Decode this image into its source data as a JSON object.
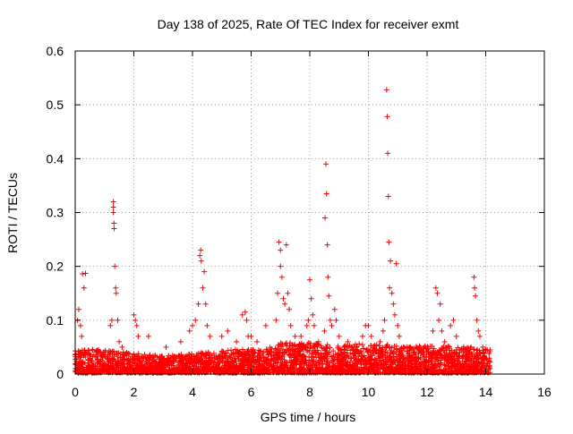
{
  "chart_data": {
    "type": "scatter",
    "title": "Day 138 of 2025, Rate Of TEC Index for receiver exmt",
    "xlabel": "GPS time / hours",
    "ylabel": "ROTI / TECUs",
    "xlim": [
      0,
      16
    ],
    "ylim": [
      0,
      0.6
    ],
    "xticks": [
      0,
      2,
      4,
      6,
      8,
      10,
      12,
      14,
      16
    ],
    "xtick_labels": [
      "0",
      "2",
      "4",
      "6",
      "8",
      "10",
      "12",
      "14",
      "16"
    ],
    "yticks": [
      0,
      0.1,
      0.2,
      0.3,
      0.4,
      0.5,
      0.6
    ],
    "ytick_labels": [
      "0",
      "0.1",
      "0.2",
      "0.3",
      "0.4",
      "0.5",
      "0.6"
    ],
    "grid": true,
    "legend": "none",
    "marker": "plus",
    "color": "#ff0000",
    "x_span": [
      0,
      14.15
    ],
    "baseline_envelope": [
      [
        0.0,
        0.035
      ],
      [
        1.0,
        0.035
      ],
      [
        2.0,
        0.03
      ],
      [
        3.0,
        0.025
      ],
      [
        4.0,
        0.03
      ],
      [
        5.0,
        0.035
      ],
      [
        6.0,
        0.035
      ],
      [
        7.0,
        0.045
      ],
      [
        8.0,
        0.045
      ],
      [
        9.0,
        0.04
      ],
      [
        10.0,
        0.045
      ],
      [
        11.0,
        0.04
      ],
      [
        12.0,
        0.04
      ],
      [
        13.0,
        0.04
      ],
      [
        14.15,
        0.035
      ]
    ],
    "points": [
      [
        0.05,
        0.02
      ],
      [
        0.08,
        0.1
      ],
      [
        0.12,
        0.12
      ],
      [
        0.18,
        0.09
      ],
      [
        0.22,
        0.07
      ],
      [
        0.25,
        0.186
      ],
      [
        0.3,
        0.16
      ],
      [
        0.35,
        0.187
      ],
      [
        1.2,
        0.09
      ],
      [
        1.25,
        0.1
      ],
      [
        1.3,
        0.32
      ],
      [
        1.3,
        0.31
      ],
      [
        1.3,
        0.3
      ],
      [
        1.32,
        0.28
      ],
      [
        1.33,
        0.27
      ],
      [
        1.35,
        0.2
      ],
      [
        1.38,
        0.16
      ],
      [
        1.4,
        0.15
      ],
      [
        1.45,
        0.1
      ],
      [
        1.5,
        0.06
      ],
      [
        1.6,
        0.05
      ],
      [
        2.0,
        0.11
      ],
      [
        2.05,
        0.1
      ],
      [
        2.1,
        0.09
      ],
      [
        2.15,
        0.07
      ],
      [
        2.5,
        0.07
      ],
      [
        3.1,
        0.05
      ],
      [
        3.6,
        0.06
      ],
      [
        3.9,
        0.08
      ],
      [
        4.0,
        0.09
      ],
      [
        4.1,
        0.1
      ],
      [
        4.2,
        0.13
      ],
      [
        4.25,
        0.22
      ],
      [
        4.28,
        0.23
      ],
      [
        4.3,
        0.21
      ],
      [
        4.35,
        0.16
      ],
      [
        4.4,
        0.19
      ],
      [
        4.45,
        0.13
      ],
      [
        4.5,
        0.09
      ],
      [
        4.6,
        0.07
      ],
      [
        5.0,
        0.07
      ],
      [
        5.2,
        0.08
      ],
      [
        5.5,
        0.06
      ],
      [
        5.7,
        0.11
      ],
      [
        5.8,
        0.115
      ],
      [
        5.85,
        0.1
      ],
      [
        5.9,
        0.07
      ],
      [
        6.0,
        0.07
      ],
      [
        6.2,
        0.06
      ],
      [
        6.5,
        0.09
      ],
      [
        6.85,
        0.1
      ],
      [
        6.9,
        0.15
      ],
      [
        6.95,
        0.245
      ],
      [
        7.0,
        0.23
      ],
      [
        7.0,
        0.2
      ],
      [
        7.05,
        0.18
      ],
      [
        7.1,
        0.14
      ],
      [
        7.15,
        0.13
      ],
      [
        7.2,
        0.24
      ],
      [
        7.25,
        0.15
      ],
      [
        7.3,
        0.12
      ],
      [
        7.35,
        0.09
      ],
      [
        7.5,
        0.07
      ],
      [
        7.7,
        0.07
      ],
      [
        7.9,
        0.09
      ],
      [
        7.95,
        0.1
      ],
      [
        8.0,
        0.175
      ],
      [
        8.05,
        0.14
      ],
      [
        8.1,
        0.11
      ],
      [
        8.15,
        0.09
      ],
      [
        8.3,
        0.06
      ],
      [
        8.5,
        0.08
      ],
      [
        8.52,
        0.29
      ],
      [
        8.55,
        0.39
      ],
      [
        8.57,
        0.335
      ],
      [
        8.6,
        0.24
      ],
      [
        8.62,
        0.18
      ],
      [
        8.65,
        0.145
      ],
      [
        8.7,
        0.1
      ],
      [
        8.75,
        0.09
      ],
      [
        8.85,
        0.12
      ],
      [
        8.9,
        0.1
      ],
      [
        9.0,
        0.07
      ],
      [
        9.3,
        0.06
      ],
      [
        9.6,
        0.05
      ],
      [
        9.8,
        0.07
      ],
      [
        9.9,
        0.09
      ],
      [
        10.0,
        0.09
      ],
      [
        10.1,
        0.07
      ],
      [
        10.4,
        0.06
      ],
      [
        10.5,
        0.08
      ],
      [
        10.55,
        0.1
      ],
      [
        10.62,
        0.528
      ],
      [
        10.64,
        0.478
      ],
      [
        10.66,
        0.41
      ],
      [
        10.68,
        0.33
      ],
      [
        10.7,
        0.245
      ],
      [
        10.72,
        0.16
      ],
      [
        10.75,
        0.21
      ],
      [
        10.8,
        0.15
      ],
      [
        10.85,
        0.13
      ],
      [
        10.9,
        0.11
      ],
      [
        10.95,
        0.205
      ],
      [
        11.0,
        0.09
      ],
      [
        11.05,
        0.07
      ],
      [
        11.2,
        0.05
      ],
      [
        12.2,
        0.08
      ],
      [
        12.3,
        0.16
      ],
      [
        12.35,
        0.15
      ],
      [
        12.4,
        0.1
      ],
      [
        12.45,
        0.13
      ],
      [
        12.5,
        0.08
      ],
      [
        12.6,
        0.06
      ],
      [
        12.8,
        0.09
      ],
      [
        12.9,
        0.1
      ],
      [
        13.0,
        0.07
      ],
      [
        13.5,
        0.05
      ],
      [
        13.6,
        0.18
      ],
      [
        13.62,
        0.16
      ],
      [
        13.65,
        0.145
      ],
      [
        13.7,
        0.1
      ],
      [
        13.75,
        0.08
      ],
      [
        13.8,
        0.07
      ],
      [
        13.9,
        0.05
      ],
      [
        14.0,
        0.03
      ]
    ]
  }
}
